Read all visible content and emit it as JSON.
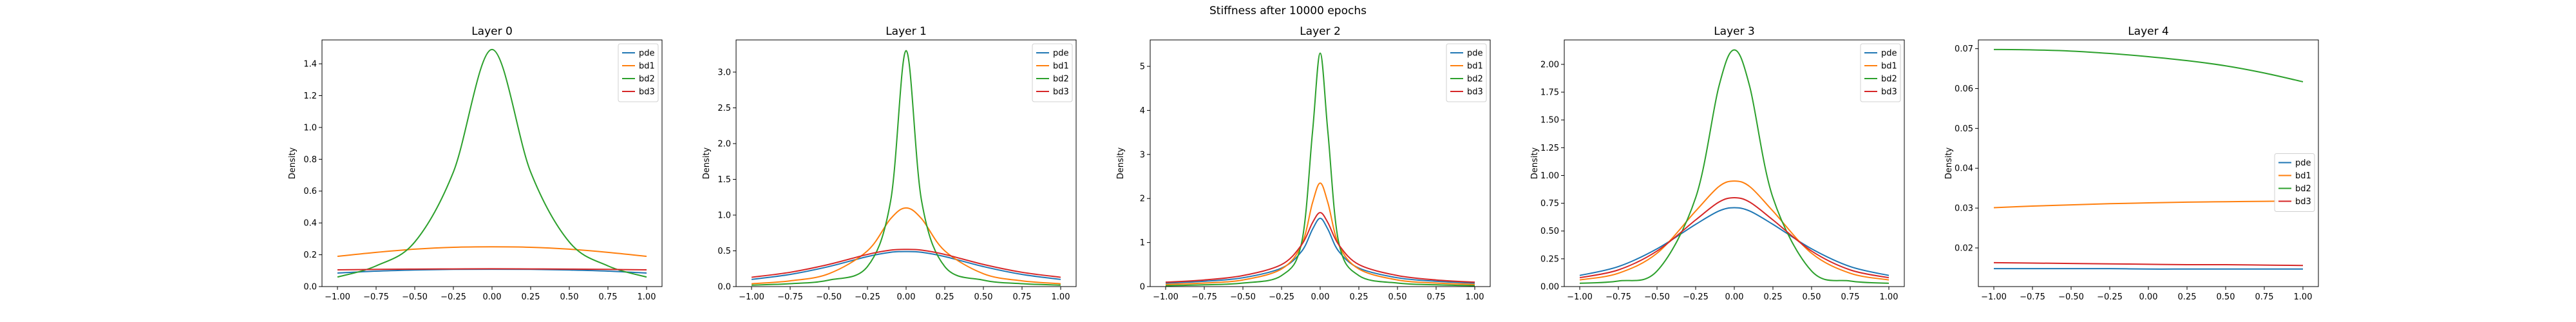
{
  "figure": {
    "suptitle": "Stiffness after 10000 epochs"
  },
  "colors": {
    "pde": "#1f77b4",
    "bd1": "#ff7f0e",
    "bd2": "#2ca02c",
    "bd3": "#d62728"
  },
  "chart_data": [
    {
      "type": "line",
      "title": "Layer 0",
      "ylabel": "Density",
      "xlim": [
        -1.1,
        1.1
      ],
      "ylim": [
        0,
        1.55
      ],
      "xticks": [
        -1.0,
        -0.75,
        -0.5,
        -0.25,
        0.0,
        0.25,
        0.5,
        0.75,
        1.0
      ],
      "xticklabels": [
        "−1.00",
        "−0.75",
        "−0.50",
        "−0.25",
        "0.00",
        "0.25",
        "0.50",
        "0.75",
        "1.00"
      ],
      "yticks": [
        0.0,
        0.2,
        0.4,
        0.6,
        0.8,
        1.0,
        1.2,
        1.4
      ],
      "yticklabels": [
        "0.0",
        "0.2",
        "0.4",
        "0.6",
        "0.8",
        "1.0",
        "1.2",
        "1.4"
      ],
      "legend": "upper right",
      "x": [
        -1.0,
        -0.75,
        -0.5,
        -0.25,
        0.0,
        0.25,
        0.5,
        0.75,
        1.0
      ],
      "series": [
        {
          "name": "pde",
          "values": [
            0.085,
            0.097,
            0.104,
            0.108,
            0.109,
            0.108,
            0.104,
            0.097,
            0.085
          ]
        },
        {
          "name": "bd1",
          "values": [
            0.19,
            0.215,
            0.235,
            0.247,
            0.25,
            0.247,
            0.235,
            0.215,
            0.19
          ]
        },
        {
          "name": "bd2",
          "values": [
            0.06,
            0.13,
            0.28,
            0.72,
            1.49,
            0.72,
            0.28,
            0.13,
            0.06
          ]
        },
        {
          "name": "bd3",
          "values": [
            0.105,
            0.108,
            0.11,
            0.111,
            0.112,
            0.111,
            0.11,
            0.108,
            0.105
          ]
        }
      ]
    },
    {
      "type": "line",
      "title": "Layer 1",
      "ylabel": "Density",
      "xlim": [
        -1.1,
        1.1
      ],
      "ylim": [
        0,
        3.45
      ],
      "xticks": [
        -1.0,
        -0.75,
        -0.5,
        -0.25,
        0.0,
        0.25,
        0.5,
        0.75,
        1.0
      ],
      "xticklabels": [
        "−1.00",
        "−0.75",
        "−0.50",
        "−0.25",
        "0.00",
        "0.25",
        "0.50",
        "0.75",
        "1.00"
      ],
      "yticks": [
        0.0,
        0.5,
        1.0,
        1.5,
        2.0,
        2.5,
        3.0
      ],
      "yticklabels": [
        "0.0",
        "0.5",
        "1.0",
        "1.5",
        "2.0",
        "2.5",
        "3.0"
      ],
      "legend": "upper right",
      "x": [
        -1.0,
        -0.75,
        -0.5,
        -0.25,
        -0.1,
        0.0,
        0.1,
        0.25,
        0.5,
        0.75,
        1.0
      ],
      "series": [
        {
          "name": "pde",
          "values": [
            0.1,
            0.17,
            0.28,
            0.42,
            0.48,
            0.49,
            0.48,
            0.42,
            0.28,
            0.17,
            0.1
          ]
        },
        {
          "name": "bd1",
          "values": [
            0.04,
            0.08,
            0.18,
            0.5,
            0.95,
            1.1,
            0.95,
            0.5,
            0.18,
            0.08,
            0.04
          ]
        },
        {
          "name": "bd2",
          "values": [
            0.02,
            0.04,
            0.09,
            0.28,
            1.2,
            3.3,
            1.2,
            0.28,
            0.09,
            0.04,
            0.02
          ]
        },
        {
          "name": "bd3",
          "values": [
            0.13,
            0.2,
            0.31,
            0.45,
            0.51,
            0.52,
            0.51,
            0.45,
            0.31,
            0.2,
            0.13
          ]
        }
      ]
    },
    {
      "type": "line",
      "title": "Layer 2",
      "ylabel": "Density",
      "xlim": [
        -1.1,
        1.1
      ],
      "ylim": [
        0,
        5.6
      ],
      "xticks": [
        -1.0,
        -0.75,
        -0.5,
        -0.25,
        0.0,
        0.25,
        0.5,
        0.75,
        1.0
      ],
      "xticklabels": [
        "−1.00",
        "−0.75",
        "−0.50",
        "−0.25",
        "0.00",
        "0.25",
        "0.50",
        "0.75",
        "1.00"
      ],
      "yticks": [
        0,
        1,
        2,
        3,
        4,
        5
      ],
      "yticklabels": [
        "0",
        "1",
        "2",
        "3",
        "4",
        "5"
      ],
      "legend": "upper right",
      "x": [
        -1.0,
        -0.75,
        -0.5,
        -0.25,
        -0.12,
        -0.05,
        0.0,
        0.05,
        0.12,
        0.25,
        0.5,
        0.75,
        1.0
      ],
      "series": [
        {
          "name": "pde",
          "values": [
            0.08,
            0.12,
            0.2,
            0.42,
            0.8,
            1.3,
            1.55,
            1.3,
            0.8,
            0.42,
            0.2,
            0.12,
            0.08
          ]
        },
        {
          "name": "bd1",
          "values": [
            0.05,
            0.08,
            0.15,
            0.4,
            0.95,
            1.9,
            2.35,
            1.9,
            0.95,
            0.4,
            0.15,
            0.08,
            0.05
          ]
        },
        {
          "name": "bd2",
          "values": [
            0.02,
            0.04,
            0.08,
            0.25,
            1.0,
            3.5,
            5.3,
            3.5,
            1.0,
            0.25,
            0.08,
            0.04,
            0.02
          ]
        },
        {
          "name": "bd3",
          "values": [
            0.1,
            0.15,
            0.25,
            0.5,
            0.95,
            1.45,
            1.68,
            1.45,
            0.95,
            0.5,
            0.25,
            0.15,
            0.1
          ]
        }
      ]
    },
    {
      "type": "line",
      "title": "Layer 3",
      "ylabel": "Density",
      "xlim": [
        -1.1,
        1.1
      ],
      "ylim": [
        0,
        2.22
      ],
      "xticks": [
        -1.0,
        -0.75,
        -0.5,
        -0.25,
        0.0,
        0.25,
        0.5,
        0.75,
        1.0
      ],
      "xticklabels": [
        "−1.00",
        "−0.75",
        "−0.50",
        "−0.25",
        "0.00",
        "0.25",
        "0.50",
        "0.75",
        "1.00"
      ],
      "yticks": [
        0.0,
        0.25,
        0.5,
        0.75,
        1.0,
        1.25,
        1.5,
        1.75,
        2.0
      ],
      "yticklabels": [
        "0.00",
        "0.25",
        "0.50",
        "0.75",
        "1.00",
        "1.25",
        "1.50",
        "1.75",
        "2.00"
      ],
      "legend": "upper right",
      "x": [
        -1.0,
        -0.75,
        -0.5,
        -0.25,
        -0.1,
        0.0,
        0.1,
        0.25,
        0.5,
        0.75,
        1.0
      ],
      "series": [
        {
          "name": "pde",
          "values": [
            0.1,
            0.18,
            0.34,
            0.56,
            0.68,
            0.71,
            0.68,
            0.56,
            0.34,
            0.18,
            0.1
          ]
        },
        {
          "name": "bd1",
          "values": [
            0.06,
            0.12,
            0.3,
            0.68,
            0.9,
            0.95,
            0.9,
            0.68,
            0.3,
            0.12,
            0.06
          ]
        },
        {
          "name": "bd2",
          "values": [
            0.03,
            0.05,
            0.14,
            0.8,
            1.8,
            2.13,
            1.8,
            0.8,
            0.14,
            0.05,
            0.03
          ]
        },
        {
          "name": "bd3",
          "values": [
            0.08,
            0.15,
            0.32,
            0.6,
            0.76,
            0.8,
            0.76,
            0.6,
            0.32,
            0.15,
            0.08
          ]
        }
      ]
    },
    {
      "type": "line",
      "title": "Layer 4",
      "ylabel": "Density",
      "xlim": [
        -1.1,
        1.1
      ],
      "ylim": [
        0.0103,
        0.0722
      ],
      "xticks": [
        -1.0,
        -0.75,
        -0.5,
        -0.25,
        0.0,
        0.25,
        0.5,
        0.75,
        1.0
      ],
      "xticklabels": [
        "−1.00",
        "−0.75",
        "−0.50",
        "−0.25",
        "0.00",
        "0.25",
        "0.50",
        "0.75",
        "1.00"
      ],
      "yticks": [
        0.02,
        0.03,
        0.04,
        0.05,
        0.06,
        0.07
      ],
      "yticklabels": [
        "0.02",
        "0.03",
        "0.04",
        "0.05",
        "0.06",
        "0.07"
      ],
      "legend": "center right",
      "x": [
        -1.0,
        -0.75,
        -0.5,
        -0.25,
        0.0,
        0.25,
        0.5,
        0.75,
        1.0
      ],
      "series": [
        {
          "name": "pde",
          "values": [
            0.0148,
            0.0148,
            0.0148,
            0.0148,
            0.0147,
            0.0147,
            0.0147,
            0.0147,
            0.0147
          ]
        },
        {
          "name": "bd1",
          "values": [
            0.0301,
            0.0305,
            0.0308,
            0.0311,
            0.0313,
            0.0315,
            0.0316,
            0.0317,
            0.0318
          ]
        },
        {
          "name": "bd2",
          "values": [
            0.0698,
            0.0697,
            0.0694,
            0.0688,
            0.068,
            0.067,
            0.0657,
            0.0639,
            0.0617
          ]
        },
        {
          "name": "bd3",
          "values": [
            0.0163,
            0.0162,
            0.0161,
            0.016,
            0.0159,
            0.0158,
            0.0158,
            0.0157,
            0.0156
          ]
        }
      ]
    }
  ]
}
